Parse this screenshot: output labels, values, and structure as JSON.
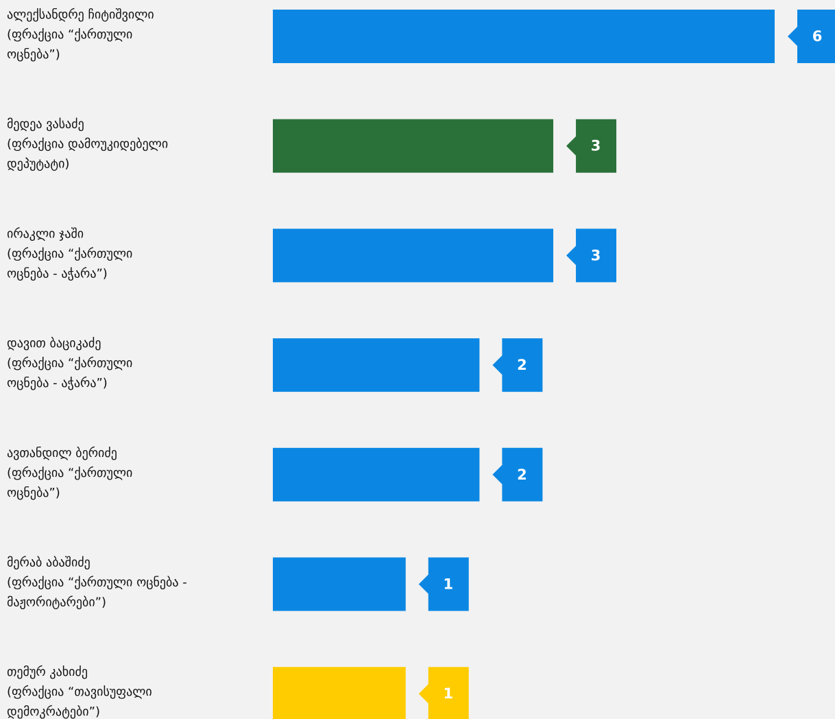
{
  "chart_data": {
    "type": "bar",
    "orientation": "horizontal",
    "categories": [
      [
        "ალექსანდრე ჩიტიშვილი",
        "(ფრაქცია “ქართული",
        "ოცნება”)"
      ],
      [
        "მედეა ვასაძე",
        "(ფრაქცია დამოუკიდებელი",
        "დეპუტატი)"
      ],
      [
        "ირაკლი ჯაში",
        "(ფრაქცია “ქართული",
        "ოცნება - აჭარა”)"
      ],
      [
        "დავით ბაციკაძე",
        "(ფრაქცია “ქართული",
        "ოცნება - აჭარა”)"
      ],
      [
        "ავთანდილ  ბერიძე",
        "(ფრაქცია “ქართული",
        "ოცნება”)"
      ],
      [
        "მერაბ აბაშიძე",
        "(ფრაქცია “ქართული ოცნება -",
        "მაჟორიტარები”)"
      ],
      [
        "თემურ კახიძე",
        "(ფრაქცია “თავისუფალი",
        "დემოკრატები”)"
      ]
    ],
    "values": [
      6,
      3,
      3,
      2,
      2,
      1,
      1
    ],
    "colors": [
      "#0b87e3",
      "#2a7139",
      "#0b87e3",
      "#0b87e3",
      "#0b87e3",
      "#0b87e3",
      "#ffcc00"
    ],
    "xlim": [
      -0.8,
      6
    ]
  }
}
